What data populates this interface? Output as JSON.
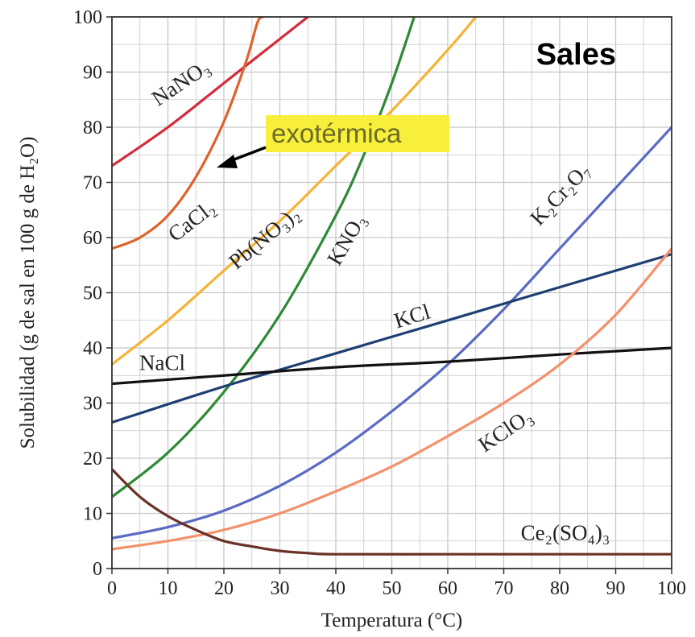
{
  "chart_data": {
    "type": "line",
    "title": "Sales",
    "xlabel": "Temperatura (°C)",
    "ylabel": "Solubilidad (g de sal en 100 g de H₂O)",
    "xlim": [
      0,
      100
    ],
    "ylim": [
      0,
      100
    ],
    "xticks": [
      "0",
      "10",
      "20",
      "30",
      "40",
      "50",
      "60",
      "70",
      "80",
      "90",
      "100"
    ],
    "yticks": [
      "0",
      "10",
      "20",
      "30",
      "40",
      "50",
      "60",
      "70",
      "80",
      "90",
      "100"
    ],
    "grid": true,
    "legend": "none",
    "series": [
      {
        "name": "NaNO₃",
        "color": "#d42a3a",
        "x": [
          0,
          10,
          20,
          30,
          35
        ],
        "y": [
          73,
          80,
          88,
          96,
          100
        ]
      },
      {
        "name": "CaCl₂",
        "color": "#e0622a",
        "x": [
          0,
          5,
          10,
          15,
          20,
          24,
          26,
          27
        ],
        "y": [
          58,
          60,
          64,
          71,
          81,
          92,
          99,
          100
        ]
      },
      {
        "name": "Pb(NO₃)₂",
        "color": "#f5b335",
        "x": [
          0,
          10,
          20,
          30,
          40,
          50,
          60,
          65
        ],
        "y": [
          37,
          45,
          54,
          63,
          73,
          83,
          94,
          100
        ]
      },
      {
        "name": "KNO₃",
        "color": "#2e8a35",
        "x": [
          0,
          10,
          20,
          30,
          40,
          45,
          50,
          54
        ],
        "y": [
          13,
          21,
          32,
          46,
          64,
          75,
          88,
          100
        ]
      },
      {
        "name": "K₂Cr₂O₇",
        "color": "#5b6ac2",
        "x": [
          0,
          10,
          20,
          30,
          40,
          50,
          60,
          70,
          80,
          90,
          100
        ],
        "y": [
          5.5,
          7.5,
          10.5,
          15,
          21,
          28.5,
          37,
          47,
          58,
          69,
          80
        ]
      },
      {
        "name": "KCl",
        "color": "#1d3f73",
        "x": [
          0,
          20,
          40,
          60,
          80,
          100
        ],
        "y": [
          26.5,
          33,
          39,
          45,
          51,
          57
        ]
      },
      {
        "name": "NaCl",
        "color": "#111111",
        "x": [
          0,
          20,
          40,
          60,
          80,
          100
        ],
        "y": [
          33.5,
          35,
          36.5,
          37.5,
          38.8,
          40
        ]
      },
      {
        "name": "KClO₃",
        "color": "#f4906a",
        "x": [
          0,
          10,
          20,
          30,
          40,
          50,
          60,
          70,
          80,
          90,
          100
        ],
        "y": [
          3.5,
          5,
          7,
          10,
          14,
          18.5,
          24,
          30,
          37,
          46,
          58
        ]
      },
      {
        "name": "Ce₂(SO₄)₃",
        "color": "#6b3327",
        "x": [
          0,
          5,
          10,
          15,
          20,
          25,
          30,
          35,
          40,
          60,
          80,
          100
        ],
        "y": [
          18,
          13,
          9.5,
          7,
          5,
          4,
          3.2,
          2.8,
          2.6,
          2.6,
          2.6,
          2.6
        ]
      }
    ],
    "labels": [
      {
        "text": "NaNO₃",
        "x": 13,
        "y": 87,
        "angle": -34,
        "anchor": "middle"
      },
      {
        "text": "CaCl₂",
        "x": 15,
        "y": 62,
        "angle": -38,
        "anchor": "middle"
      },
      {
        "text": "Pb(NO₃)₂",
        "x": 28,
        "y": 59,
        "angle": -40,
        "anchor": "middle"
      },
      {
        "text": "KNO₃",
        "x": 43,
        "y": 59,
        "angle": -60,
        "anchor": "middle"
      },
      {
        "text": "KCl",
        "x": 54,
        "y": 44.5,
        "angle": -17,
        "anchor": "middle"
      },
      {
        "text": "NaCl",
        "x": 9,
        "y": 36,
        "angle": 0,
        "anchor": "middle"
      },
      {
        "text": "K₂Cr₂O₇",
        "x": 81,
        "y": 67,
        "angle": -47,
        "anchor": "middle"
      },
      {
        "text": "KClO₃",
        "x": 71,
        "y": 24,
        "angle": -34,
        "anchor": "middle"
      },
      {
        "text": "Ce₂(SO₄)₃",
        "x": 81,
        "y": 5.2,
        "angle": 0,
        "anchor": "middle"
      }
    ],
    "annotation": {
      "text": "exotérmica",
      "highlight": "#f7ef3a",
      "arrow_to": [
        19,
        73
      ]
    }
  }
}
